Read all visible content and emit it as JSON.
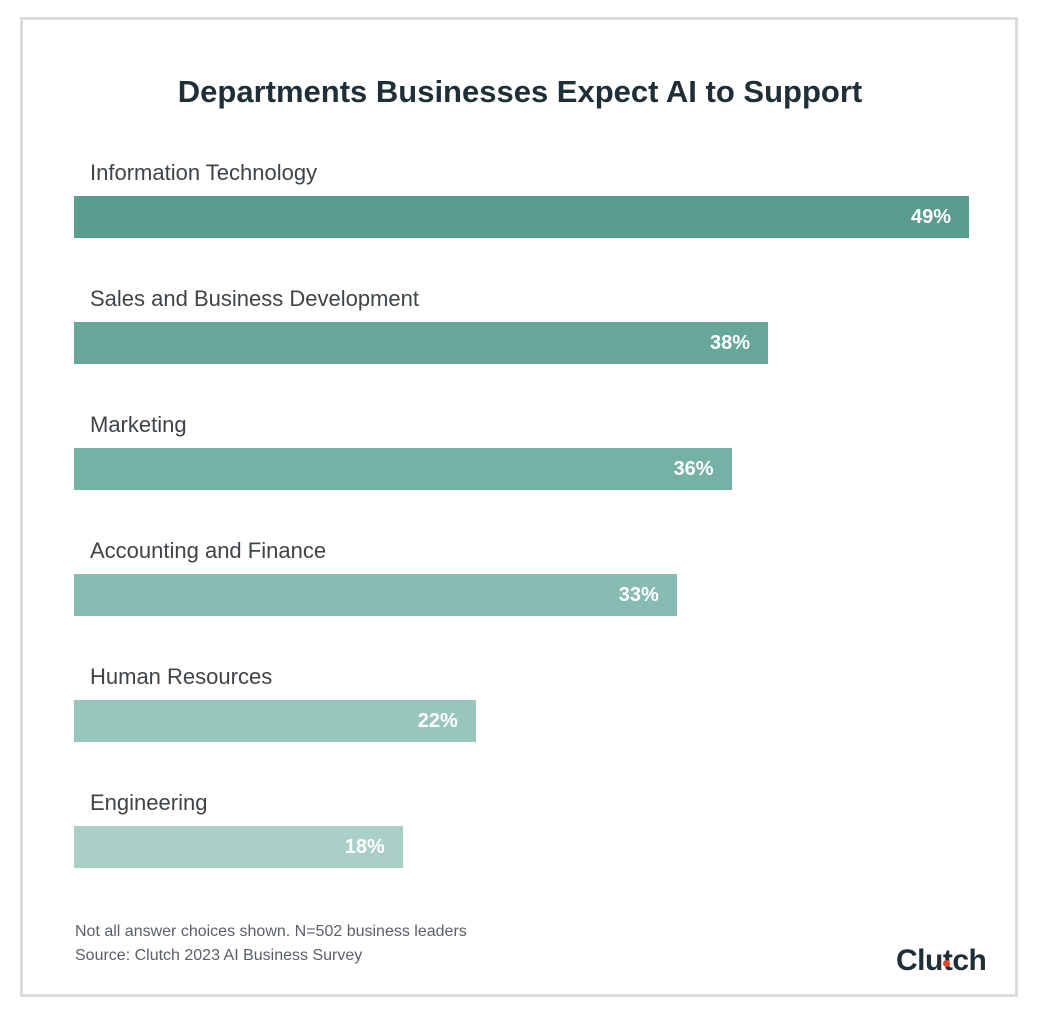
{
  "chart_data": {
    "type": "bar",
    "orientation": "horizontal",
    "title": "Departments Businesses Expect AI to Support",
    "categories": [
      "Information Technology",
      "Sales and Business Development",
      "Marketing",
      "Accounting and Finance",
      "Human Resources",
      "Engineering"
    ],
    "values": [
      49,
      38,
      36,
      33,
      22,
      18
    ],
    "labels": [
      "49%",
      "38%",
      "36%",
      "33%",
      "22%",
      "18%"
    ],
    "colors": [
      "#5a9c8e",
      "#66a79a",
      "#76b1a6",
      "#88bcb2",
      "#98c6bd",
      "#a9cfc7"
    ],
    "xlim": [
      0,
      49
    ],
    "grid": false,
    "legend": "none"
  },
  "footnote": "Not all answer choices shown. N=502 business leaders",
  "source": "Source: Clutch 2023 AI Business Survey",
  "logo": "Clutch",
  "logo_accent": "#e8472f"
}
